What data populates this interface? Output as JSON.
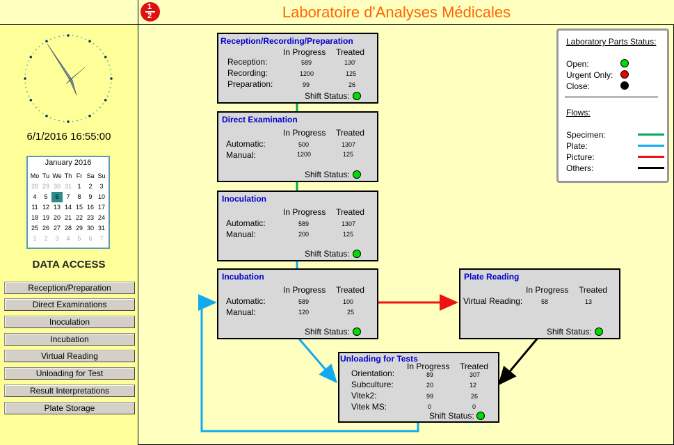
{
  "app": {
    "title": "Laboratoire d'Analyses Médicales",
    "logo_top": "1",
    "logo_bottom": "2"
  },
  "sidebar": {
    "datetime": "6/1/2016 16:55:00",
    "calendar": {
      "title": "January 2016",
      "weekdays": [
        "Mo",
        "Tu",
        "We",
        "Th",
        "Fr",
        "Sa",
        "Su"
      ],
      "weeks": [
        [
          "28",
          "29",
          "30",
          "31",
          "1",
          "2",
          "3"
        ],
        [
          "4",
          "5",
          "6",
          "7",
          "8",
          "9",
          "10"
        ],
        [
          "11",
          "12",
          "13",
          "14",
          "15",
          "16",
          "17"
        ],
        [
          "18",
          "19",
          "20",
          "21",
          "22",
          "23",
          "24"
        ],
        [
          "25",
          "26",
          "27",
          "28",
          "29",
          "30",
          "31"
        ],
        [
          "1",
          "2",
          "3",
          "4",
          "5",
          "6",
          "7"
        ]
      ],
      "selected_day": "6"
    },
    "data_access_label": "DATA ACCESS",
    "nav": [
      "Reception/Preparation",
      "Direct Examinations",
      "Inoculation",
      "Incubation",
      "Virtual Reading",
      "Unloading for Test",
      "Result Interpretations",
      "Plate Storage"
    ]
  },
  "labels": {
    "in_progress": "In Progress",
    "treated": "Treated",
    "shift_status": "Shift Status:"
  },
  "boxes": {
    "reception": {
      "title": "Reception/Recording/Preparation",
      "rows": [
        {
          "label": "Reception:",
          "in_progress": "589",
          "treated": "130'"
        },
        {
          "label": "Recording:",
          "in_progress": "1200",
          "treated": "125"
        },
        {
          "label": "Preparation:",
          "in_progress": "99",
          "treated": "26"
        }
      ]
    },
    "direct": {
      "title": "Direct Examination",
      "rows": [
        {
          "label": "Automatic:",
          "in_progress": "500",
          "treated": "1307"
        },
        {
          "label": "Manual:",
          "in_progress": "1200",
          "treated": "125"
        }
      ]
    },
    "inoculation": {
      "title": "Inoculation",
      "rows": [
        {
          "label": "Automatic:",
          "in_progress": "589",
          "treated": "1307"
        },
        {
          "label": "Manual:",
          "in_progress": "200",
          "treated": "125"
        }
      ]
    },
    "incubation": {
      "title": "Incubation",
      "rows": [
        {
          "label": "Automatic:",
          "in_progress": "589",
          "treated": "100"
        },
        {
          "label": "Manual:",
          "in_progress": "120",
          "treated": "25"
        }
      ]
    },
    "plate_reading": {
      "title": "Plate Reading",
      "rows": [
        {
          "label": "Virtual Reading:",
          "in_progress": "58",
          "treated": "13"
        }
      ]
    },
    "unloading": {
      "title": "Unloading for Tests",
      "rows": [
        {
          "label": "Orientation:",
          "in_progress": "89",
          "treated": "307"
        },
        {
          "label": "Subculture:",
          "in_progress": "20",
          "treated": "12"
        },
        {
          "label": "Vitek2:",
          "in_progress": "99",
          "treated": "26"
        },
        {
          "label": "Vitek MS:",
          "in_progress": "0",
          "treated": "0"
        }
      ]
    }
  },
  "legend": {
    "title": "Laboratory Parts Status:",
    "status": [
      "Open:",
      "Urgent Only:",
      "Close:"
    ],
    "flows_title": "Flows:",
    "flows": [
      "Specimen:",
      "Plate:",
      "Picture:",
      "Others:"
    ]
  },
  "colors": {
    "specimen": "#00aa55",
    "plate": "#11aaee",
    "picture": "#ee1111",
    "others": "#000000",
    "title": "#ff6600",
    "box_title": "#0000cc"
  }
}
